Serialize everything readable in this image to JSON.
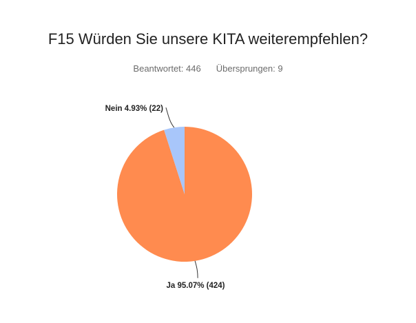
{
  "chart_data": {
    "type": "pie",
    "title": "F15 Würden Sie unsere KITA weiterempfehlen?",
    "answered_label": "Beantwortet: 446",
    "skipped_label": "Übersprungen: 9",
    "slices": [
      {
        "name": "Ja",
        "percent": 95.07,
        "count": 424,
        "label": "Ja 95.07% (424)",
        "color": "#FF8B4F"
      },
      {
        "name": "Nein",
        "percent": 4.93,
        "count": 22,
        "label": "Nein 4.93% (22)",
        "color": "#A8C6FA"
      }
    ]
  }
}
